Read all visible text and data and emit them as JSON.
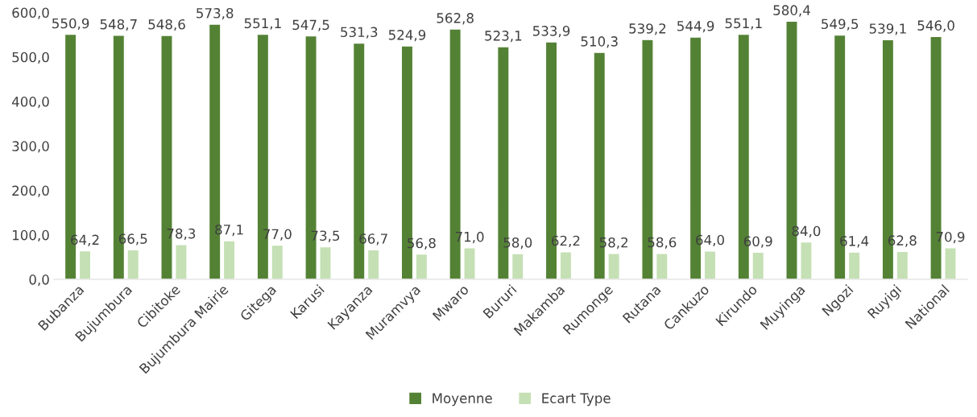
{
  "chart_data": {
    "type": "bar",
    "categories": [
      "Bubanza",
      "Bujumbura",
      "Cibitoke",
      "Bujumbura Mairie",
      "Gitega",
      "Karusi",
      "Kayanza",
      "Muramvya",
      "Mwaro",
      "Bururi",
      "Makamba",
      "Rumonge",
      "Rutana",
      "Cankuzo",
      "Kirundo",
      "Muyinga",
      "Ngozi",
      "Ruyigi",
      "National"
    ],
    "series": [
      {
        "name": "Moyenne",
        "color": "#548235",
        "values": [
          550.9,
          548.7,
          548.6,
          573.8,
          551.1,
          547.5,
          531.3,
          524.9,
          562.8,
          523.1,
          533.9,
          510.3,
          539.2,
          544.9,
          551.1,
          580.4,
          549.5,
          539.1,
          546.0
        ],
        "value_labels": [
          "550,9",
          "548,7",
          "548,6",
          "573,8",
          "551,1",
          "547,5",
          "531,3",
          "524,9",
          "562,8",
          "523,1",
          "533,9",
          "510,3",
          "539,2",
          "544,9",
          "551,1",
          "580,4",
          "549,5",
          "539,1",
          "546,0"
        ]
      },
      {
        "name": "Ecart Type",
        "color": "#c5e0b4",
        "values": [
          64.2,
          66.5,
          78.3,
          87.1,
          77.0,
          73.5,
          66.7,
          56.8,
          71.0,
          58.0,
          62.2,
          58.2,
          58.6,
          64.0,
          60.9,
          84.0,
          61.4,
          62.8,
          70.9
        ],
        "value_labels": [
          "64,2",
          "66,5",
          "78,3",
          "87,1",
          "77,0",
          "73,5",
          "66,7",
          "56,8",
          "71,0",
          "58,0",
          "62,2",
          "58,2",
          "58,6",
          "64,0",
          "60,9",
          "84,0",
          "61,4",
          "62,8",
          "70,9"
        ]
      }
    ],
    "ylim": [
      0,
      600
    ],
    "yticks": [
      {
        "value": 0,
        "label": "0,0"
      },
      {
        "value": 100,
        "label": "100,0"
      },
      {
        "value": 200,
        "label": "200,0"
      },
      {
        "value": 300,
        "label": "300,0"
      },
      {
        "value": 400,
        "label": "400,0"
      },
      {
        "value": 500,
        "label": "500,0"
      },
      {
        "value": 600,
        "label": "600,0"
      }
    ],
    "grid": false,
    "legend": "bottom"
  }
}
